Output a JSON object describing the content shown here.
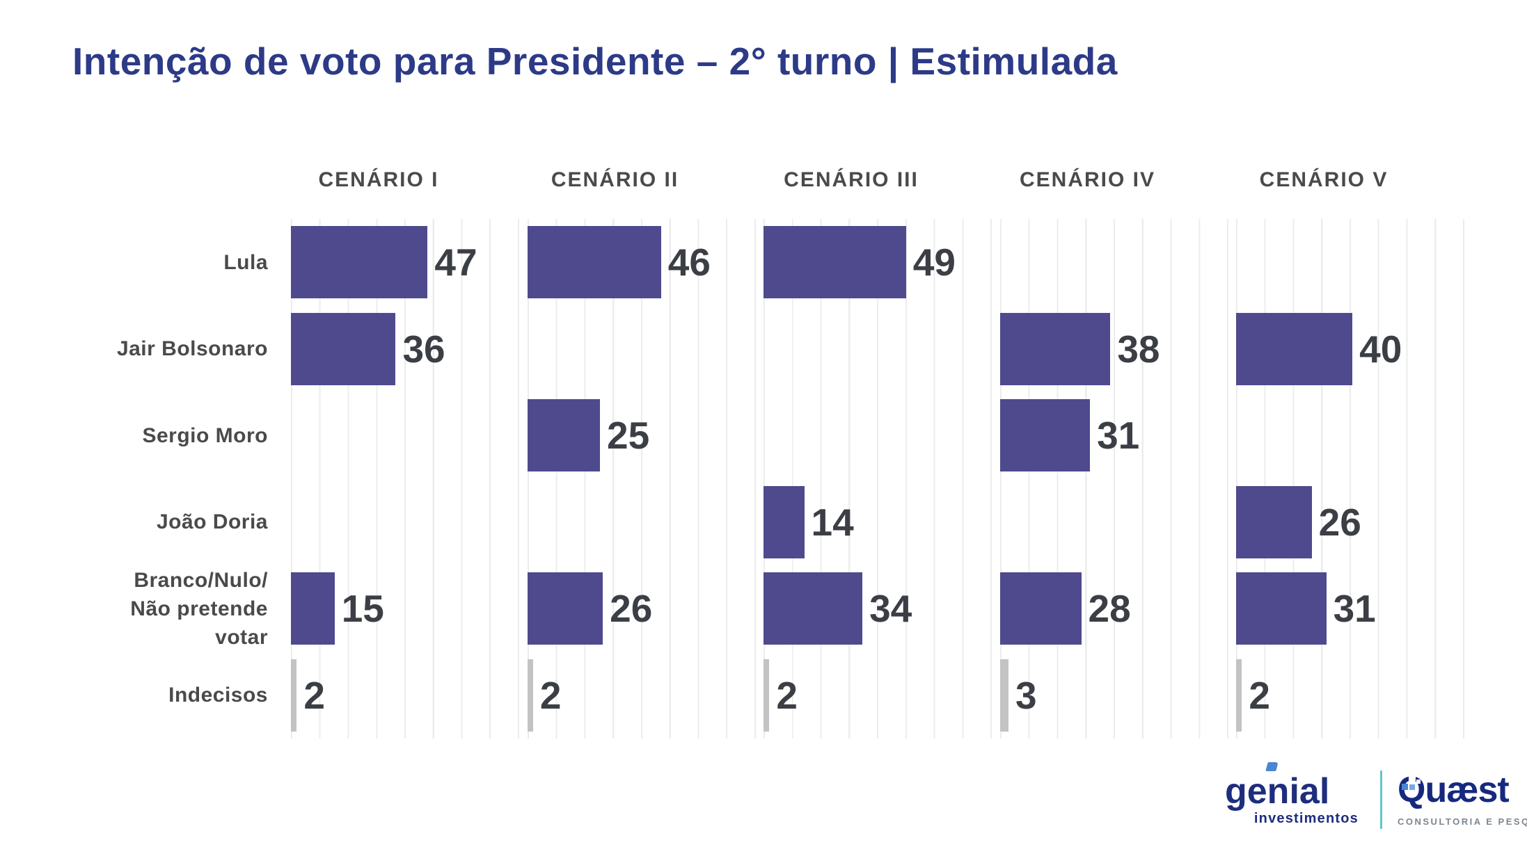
{
  "title": "Intenção de voto para Presidente – 2° turno | Estimulada",
  "chart_data": {
    "type": "bar",
    "orientation": "horizontal",
    "title": "Intenção de voto para Presidente – 2° turno | Estimulada",
    "categories": [
      "Lula",
      "Jair Bolsonaro",
      "Sergio Moro",
      "João Doria",
      "Branco/Nulo/\nNão pretende\nvotar",
      "Indecisos"
    ],
    "series": [
      {
        "name": "CENÁRIO I",
        "values": [
          47,
          36,
          null,
          null,
          15,
          2
        ]
      },
      {
        "name": "CENÁRIO II",
        "values": [
          46,
          null,
          25,
          null,
          26,
          2
        ]
      },
      {
        "name": "CENÁRIO III",
        "values": [
          49,
          null,
          null,
          14,
          34,
          2
        ]
      },
      {
        "name": "CENÁRIO IV",
        "values": [
          null,
          38,
          31,
          null,
          28,
          3
        ]
      },
      {
        "name": "CENÁRIO V",
        "values": [
          null,
          40,
          null,
          26,
          31,
          2
        ]
      }
    ],
    "xlim": [
      0,
      78
    ],
    "grid": true,
    "legend_position": "none",
    "notes": "Indecisos row drawn in gray; all other bars purple; value labels to the right of each bar"
  },
  "colors": {
    "title": "#2c3a87",
    "bar": "#4e4a8d",
    "indecisos_bar": "#c3c3c3",
    "value_label": "#3b3f45",
    "category_label": "#4a4a4a",
    "scenario_header": "#4a4a4a",
    "gridline": "#ececec",
    "genial_navy": "#1e2d7d",
    "genial_mark_blue": "#4a86d3",
    "quaest_navy": "#16297f",
    "divider_teal": "#63c5ca",
    "tagline_gray": "#7d8690"
  },
  "footer": {
    "genial": {
      "name": "genial",
      "subtitle": "investimentos"
    },
    "quaest": {
      "name": "Quæst",
      "subtitle": "CONSULTORIA E PESQUISA"
    }
  }
}
